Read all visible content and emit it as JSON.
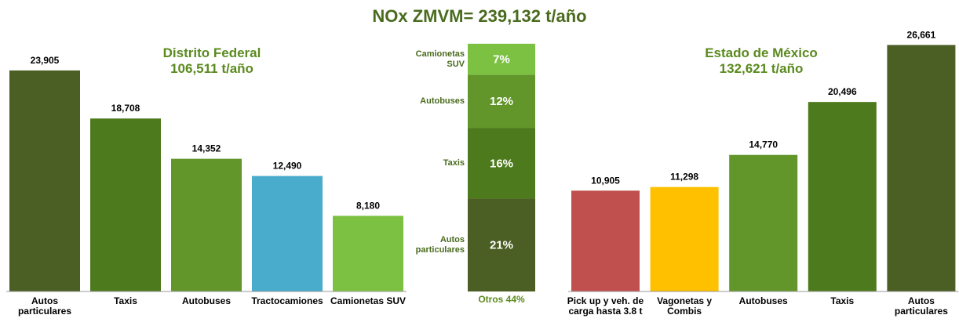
{
  "title": "NOx ZMVM= 239,132 t/año",
  "chart_data": [
    {
      "type": "bar",
      "title": "Distrito Federal",
      "subtitle": "106,511 t/año",
      "categories": [
        "Autos particulares",
        "Taxis",
        "Autobuses",
        "Tractocamiones",
        "Camionetas SUV"
      ],
      "values": [
        23905,
        18708,
        14352,
        12490,
        8180
      ],
      "value_labels": [
        "23,905",
        "18,708",
        "14,352",
        "12,490",
        "8,180"
      ],
      "colors": [
        "#4b5e23",
        "#4d7a1c",
        "#62962b",
        "#4aaccc",
        "#7dc142"
      ],
      "ylim": [
        0,
        30000
      ]
    },
    {
      "type": "stacked_bar",
      "categories": [
        "Autos particulares",
        "Taxis",
        "Autobuses",
        "Camionetas SUV"
      ],
      "values": [
        21,
        16,
        12,
        7
      ],
      "value_labels": [
        "21%",
        "16%",
        "12%",
        "7%"
      ],
      "colors": [
        "#4b5e23",
        "#4d7a1c",
        "#62962b",
        "#7dc142"
      ],
      "annotation": "Otros 44%",
      "ylim": [
        0,
        65
      ]
    },
    {
      "type": "bar",
      "title": "Estado de México",
      "subtitle": "132,621 t/año",
      "categories": [
        "Pick up y veh. de carga hasta 3.8 t",
        "Vagonetas y Combis",
        "Autobuses",
        "Taxis",
        "Autos particulares"
      ],
      "values": [
        10905,
        11298,
        14770,
        20496,
        26661
      ],
      "value_labels": [
        "10,905",
        "11,298",
        "14,770",
        "20,496",
        "26,661"
      ],
      "colors": [
        "#c0504d",
        "#ffc000",
        "#62962b",
        "#4d7a1c",
        "#4b5e23"
      ],
      "ylim": [
        0,
        30000
      ]
    }
  ]
}
